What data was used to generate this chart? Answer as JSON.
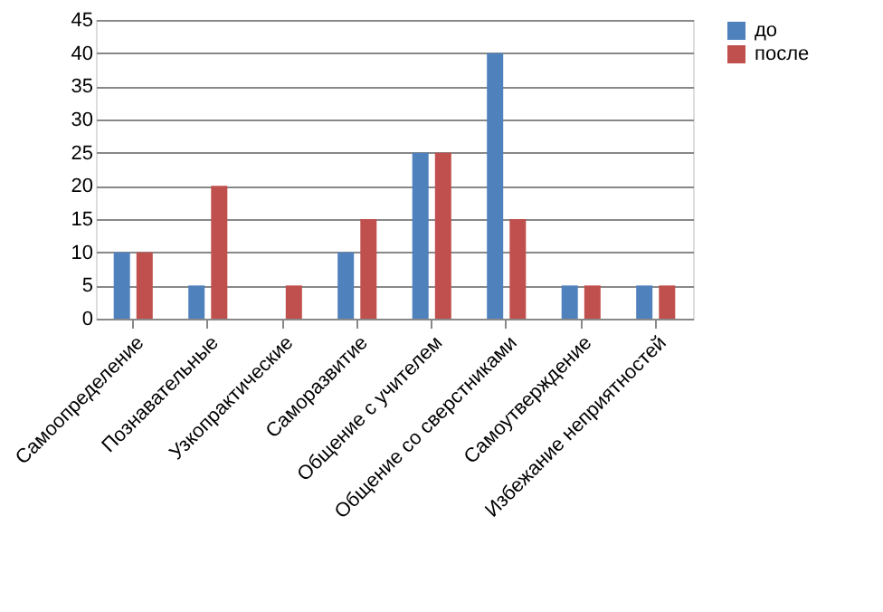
{
  "chart_data": {
    "type": "bar",
    "categories": [
      "Самоопределение",
      "Познавательные",
      "Узкопрактические",
      "Саморазвитие",
      "Общение с учителем",
      "Общение со сверстниками",
      "Самоутверждение",
      "Избежание неприятностей"
    ],
    "series": [
      {
        "name": "до",
        "color": "#4f81bd",
        "values": [
          10,
          5,
          0,
          10,
          25,
          40,
          5,
          5
        ]
      },
      {
        "name": "после",
        "color": "#c0504d",
        "values": [
          10,
          20,
          5,
          15,
          25,
          15,
          5,
          5
        ]
      }
    ],
    "ylim": [
      0,
      45
    ],
    "yticks": [
      0,
      5,
      10,
      15,
      20,
      25,
      30,
      35,
      40,
      45
    ],
    "grid": "y",
    "legend": "right"
  }
}
